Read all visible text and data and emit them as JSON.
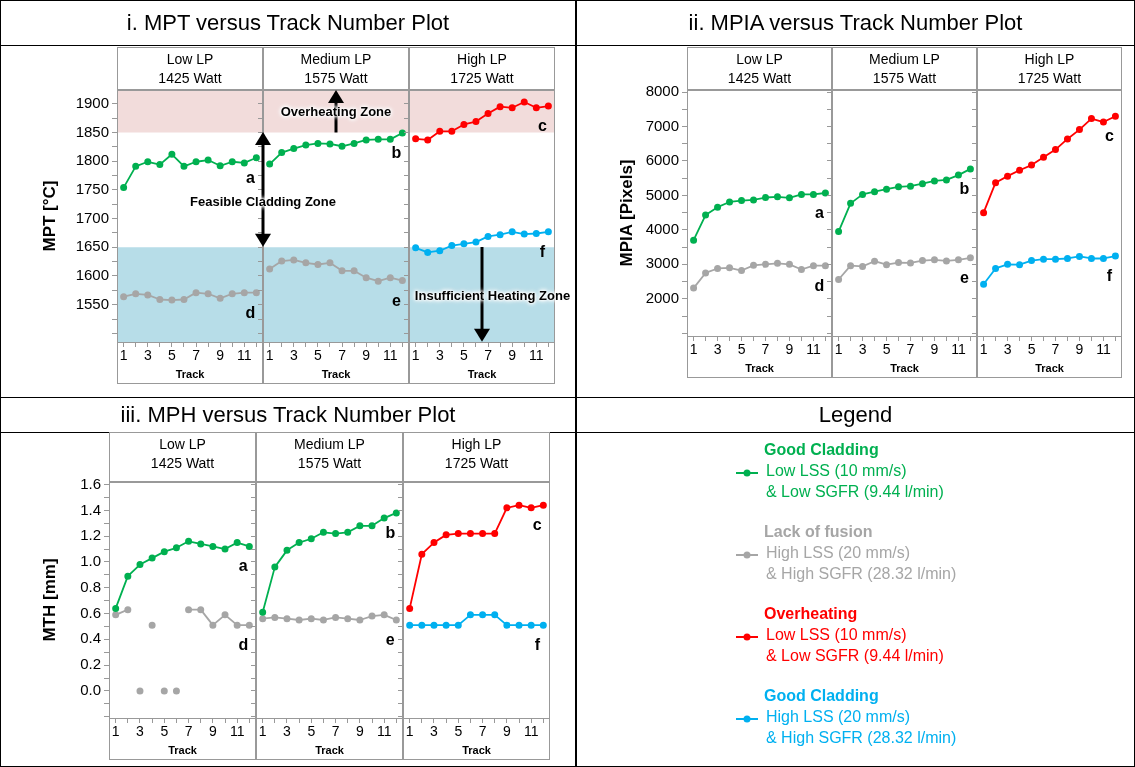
{
  "chart_data": [
    {
      "type": "line",
      "title": "Low LP",
      "subtitle": "1425 Watt",
      "xlabel": "Track",
      "ylabel": "MPT [°C]",
      "x": [
        1,
        2,
        3,
        4,
        5,
        6,
        7,
        8,
        9,
        10,
        11,
        12
      ],
      "xlim": [
        0.45,
        12.55
      ],
      "xticks": [
        1,
        {
          "value": 2,
          "label": null
        },
        3,
        {
          "value": 4,
          "label": null
        },
        5,
        {
          "value": 6,
          "label": null
        },
        7,
        {
          "value": 8,
          "label": null
        },
        9,
        {
          "value": 10,
          "label": null
        },
        11,
        {
          "value": 12,
          "label": null
        }
      ],
      "ylim": [
        1485,
        1924
      ],
      "yticks": [
        {
          "value": 1500,
          "label": null
        },
        {
          "value": 1525,
          "label": null
        },
        1550,
        {
          "value": 1575,
          "label": null
        },
        1600,
        {
          "value": 1625,
          "label": null
        },
        1650,
        {
          "value": 1675,
          "label": null
        },
        1700,
        {
          "value": 1725,
          "label": null
        },
        1750,
        {
          "value": 1775,
          "label": null
        },
        1800,
        {
          "value": 1825,
          "label": null
        },
        1850,
        {
          "value": 1875,
          "label": null
        },
        1900
      ],
      "marker": "circle",
      "bands": [
        {
          "axis": "y",
          "from": 1850,
          "to": 1924,
          "color": "#f2dcdb"
        },
        {
          "axis": "y",
          "from": 1485,
          "to": 1650,
          "color": "#b7dde8"
        }
      ],
      "annotations": [
        "i. MPT versus Track Number Plot",
        "Feasible Cladding Zone"
      ],
      "series": [
        {
          "name": "a",
          "color": "#00b050",
          "values": [
            1754,
            1791,
            1799,
            1794,
            1812,
            1791,
            1799,
            1802,
            1792,
            1799,
            1797,
            1806
          ]
        },
        {
          "name": "d",
          "color": "#a6a6a6",
          "values": [
            1564,
            1569,
            1567,
            1559,
            1558,
            1559,
            1571,
            1569,
            1561,
            1569,
            1571,
            1571
          ]
        }
      ]
    },
    {
      "type": "line",
      "title": "Medium LP",
      "subtitle": "1575 Watt",
      "xlabel": "Track",
      "x": [
        1,
        2,
        3,
        4,
        5,
        6,
        7,
        8,
        9,
        10,
        11,
        12
      ],
      "xlim": [
        0.45,
        12.55
      ],
      "xticks": [
        1,
        {
          "value": 2,
          "label": null
        },
        3,
        {
          "value": 4,
          "label": null
        },
        5,
        {
          "value": 6,
          "label": null
        },
        7,
        {
          "value": 8,
          "label": null
        },
        9,
        {
          "value": 10,
          "label": null
        },
        11,
        {
          "value": 12,
          "label": null
        }
      ],
      "ylim": [
        1485,
        1924
      ],
      "yticks": [
        {
          "value": 1500,
          "label": null
        },
        {
          "value": 1525,
          "label": null
        },
        1550,
        {
          "value": 1575,
          "label": null
        },
        1600,
        {
          "value": 1625,
          "label": null
        },
        1650,
        {
          "value": 1675,
          "label": null
        },
        1700,
        {
          "value": 1725,
          "label": null
        },
        1750,
        {
          "value": 1775,
          "label": null
        },
        1800,
        {
          "value": 1825,
          "label": null
        },
        1850,
        {
          "value": 1875,
          "label": null
        },
        1900
      ],
      "tick_labels": "x",
      "marker": "circle",
      "bands": [
        {
          "axis": "y",
          "from": 1850,
          "to": 1924,
          "label": "Overheating Zone",
          "color": "#f2dcdb"
        },
        {
          "axis": "y",
          "from": 1485,
          "to": 1650,
          "color": "#b7dde8"
        }
      ],
      "series": [
        {
          "name": "b",
          "color": "#00b050",
          "values": [
            1795,
            1815,
            1822,
            1828,
            1831,
            1830,
            1826,
            1831,
            1837,
            1838,
            1838,
            1849
          ]
        },
        {
          "name": "e",
          "color": "#a6a6a6",
          "values": [
            1612,
            1626,
            1628,
            1623,
            1620,
            1623,
            1609,
            1609,
            1597,
            1591,
            1597,
            1592
          ]
        }
      ]
    },
    {
      "type": "line",
      "title": "High LP",
      "subtitle": "1725 Watt",
      "xlabel": "Track",
      "x": [
        1,
        2,
        3,
        4,
        5,
        6,
        7,
        8,
        9,
        10,
        11,
        12
      ],
      "xlim": [
        0.45,
        12.55
      ],
      "xticks": [
        1,
        {
          "value": 2,
          "label": null
        },
        3,
        {
          "value": 4,
          "label": null
        },
        5,
        {
          "value": 6,
          "label": null
        },
        7,
        {
          "value": 8,
          "label": null
        },
        9,
        {
          "value": 10,
          "label": null
        },
        11,
        {
          "value": 12,
          "label": null
        }
      ],
      "ylim": [
        1485,
        1924
      ],
      "yticks": [
        {
          "value": 1500,
          "label": null
        },
        {
          "value": 1525,
          "label": null
        },
        1550,
        {
          "value": 1575,
          "label": null
        },
        1600,
        {
          "value": 1625,
          "label": null
        },
        1650,
        {
          "value": 1675,
          "label": null
        },
        1700,
        {
          "value": 1725,
          "label": null
        },
        1750,
        {
          "value": 1775,
          "label": null
        },
        1800,
        {
          "value": 1825,
          "label": null
        },
        1850,
        {
          "value": 1875,
          "label": null
        },
        1900
      ],
      "tick_labels": "x",
      "marker": "circle",
      "bands": [
        {
          "axis": "y",
          "from": 1850,
          "to": 1924,
          "color": "#f2dcdb"
        },
        {
          "axis": "y",
          "from": 1485,
          "to": 1650,
          "label": "Insufficient Heating Zone",
          "color": "#b7dde8"
        }
      ],
      "series": [
        {
          "name": "c",
          "color": "#ff0000",
          "values": [
            1839,
            1837,
            1852,
            1852,
            1864,
            1869,
            1883,
            1895,
            1893,
            1903,
            1893,
            1896
          ]
        },
        {
          "name": "f",
          "color": "#00b0f0",
          "values": [
            1649,
            1641,
            1644,
            1653,
            1656,
            1659,
            1669,
            1672,
            1677,
            1673,
            1674,
            1677
          ]
        }
      ]
    },
    {
      "type": "line",
      "title": "Low LP",
      "subtitle": "1425 Watt",
      "xlabel": "Track",
      "ylabel": "MPIA [Pixels]",
      "x": [
        1,
        2,
        3,
        4,
        5,
        6,
        7,
        8,
        9,
        10,
        11,
        12
      ],
      "xlim": [
        0.45,
        12.55
      ],
      "xticks": [
        1,
        {
          "value": 2,
          "label": null
        },
        3,
        {
          "value": 4,
          "label": null
        },
        5,
        {
          "value": 6,
          "label": null
        },
        7,
        {
          "value": 8,
          "label": null
        },
        9,
        {
          "value": 10,
          "label": null
        },
        11,
        {
          "value": 12,
          "label": null
        }
      ],
      "ylim": [
        920,
        8060
      ],
      "yticks": [
        {
          "value": 1000,
          "label": null
        },
        {
          "value": 1500,
          "label": null
        },
        2000,
        {
          "value": 2500,
          "label": null
        },
        3000,
        {
          "value": 3500,
          "label": null
        },
        4000,
        {
          "value": 4500,
          "label": null
        },
        5000,
        {
          "value": 5500,
          "label": null
        },
        6000,
        {
          "value": 6500,
          "label": null
        },
        7000,
        {
          "value": 7500,
          "label": null
        },
        8000
      ],
      "marker": "circle",
      "annotations": [
        "ii. MPIA versus Track Number Plot"
      ],
      "series": [
        {
          "name": "a",
          "color": "#00b050",
          "values": [
            3700,
            4430,
            4660,
            4810,
            4850,
            4870,
            4940,
            4960,
            4930,
            5030,
            5030,
            5070
          ]
        },
        {
          "name": "d",
          "color": "#a6a6a6",
          "values": [
            2310,
            2750,
            2880,
            2900,
            2820,
            2970,
            3000,
            3030,
            3000,
            2850,
            2960,
            2960
          ]
        }
      ]
    },
    {
      "type": "line",
      "title": "Medium LP",
      "subtitle": "1575 Watt",
      "xlabel": "Track",
      "x": [
        1,
        2,
        3,
        4,
        5,
        6,
        7,
        8,
        9,
        10,
        11,
        12
      ],
      "xlim": [
        0.45,
        12.55
      ],
      "xticks": [
        1,
        {
          "value": 2,
          "label": null
        },
        3,
        {
          "value": 4,
          "label": null
        },
        5,
        {
          "value": 6,
          "label": null
        },
        7,
        {
          "value": 8,
          "label": null
        },
        9,
        {
          "value": 10,
          "label": null
        },
        11,
        {
          "value": 12,
          "label": null
        }
      ],
      "ylim": [
        920,
        8060
      ],
      "yticks": [
        {
          "value": 1000,
          "label": null
        },
        {
          "value": 1500,
          "label": null
        },
        2000,
        {
          "value": 2500,
          "label": null
        },
        3000,
        {
          "value": 3500,
          "label": null
        },
        4000,
        {
          "value": 4500,
          "label": null
        },
        5000,
        {
          "value": 5500,
          "label": null
        },
        6000,
        {
          "value": 6500,
          "label": null
        },
        7000,
        {
          "value": 7500,
          "label": null
        },
        8000
      ],
      "tick_labels": "x",
      "marker": "circle",
      "series": [
        {
          "name": "b",
          "color": "#00b050",
          "values": [
            3950,
            4770,
            5030,
            5110,
            5180,
            5250,
            5270,
            5340,
            5420,
            5450,
            5590,
            5770
          ]
        },
        {
          "name": "e",
          "color": "#a6a6a6",
          "values": [
            2560,
            2960,
            2940,
            3090,
            2990,
            3050,
            3040,
            3110,
            3130,
            3100,
            3130,
            3190
          ]
        }
      ]
    },
    {
      "type": "line",
      "title": "High LP",
      "subtitle": "1725 Watt",
      "xlabel": "Track",
      "x": [
        1,
        2,
        3,
        4,
        5,
        6,
        7,
        8,
        9,
        10,
        11,
        12
      ],
      "xlim": [
        0.45,
        12.55
      ],
      "xticks": [
        1,
        {
          "value": 2,
          "label": null
        },
        3,
        {
          "value": 4,
          "label": null
        },
        5,
        {
          "value": 6,
          "label": null
        },
        7,
        {
          "value": 8,
          "label": null
        },
        9,
        {
          "value": 10,
          "label": null
        },
        11,
        {
          "value": 12,
          "label": null
        }
      ],
      "ylim": [
        920,
        8060
      ],
      "yticks": [
        {
          "value": 1000,
          "label": null
        },
        {
          "value": 1500,
          "label": null
        },
        2000,
        {
          "value": 2500,
          "label": null
        },
        3000,
        {
          "value": 3500,
          "label": null
        },
        4000,
        {
          "value": 4500,
          "label": null
        },
        5000,
        {
          "value": 5500,
          "label": null
        },
        6000,
        {
          "value": 6500,
          "label": null
        },
        7000,
        {
          "value": 7500,
          "label": null
        },
        8000
      ],
      "tick_labels": "x",
      "marker": "circle",
      "series": [
        {
          "name": "c",
          "color": "#ff0000",
          "values": [
            4500,
            5370,
            5560,
            5730,
            5880,
            6110,
            6330,
            6640,
            6910,
            7230,
            7130,
            7300
          ]
        },
        {
          "name": "f",
          "color": "#00b0f0",
          "values": [
            2420,
            2880,
            3000,
            2990,
            3110,
            3150,
            3150,
            3170,
            3230,
            3170,
            3170,
            3240
          ]
        }
      ]
    },
    {
      "type": "line",
      "title": "Low LP",
      "subtitle": "1425 Watt",
      "xlabel": "Track",
      "ylabel": "MTH [mm]",
      "x": [
        1,
        2,
        3,
        4,
        5,
        6,
        7,
        8,
        9,
        10,
        11,
        12
      ],
      "xlim": [
        0.45,
        12.55
      ],
      "xticks": [
        1,
        {
          "value": 2,
          "label": null
        },
        3,
        {
          "value": 4,
          "label": null
        },
        5,
        {
          "value": 6,
          "label": null
        },
        7,
        {
          "value": 8,
          "label": null
        },
        9,
        {
          "value": 10,
          "label": null
        },
        11,
        {
          "value": 12,
          "label": null
        }
      ],
      "ylim": [
        -0.21,
        1.62
      ],
      "yticks": [
        {
          "value": -0.2,
          "label": null
        },
        {
          "value": -0.1,
          "label": null
        },
        {
          "value": 0,
          "label": "0.0"
        },
        {
          "value": 0.1,
          "label": null
        },
        {
          "value": 0.2,
          "label": "0.2"
        },
        {
          "value": 0.3,
          "label": null
        },
        {
          "value": 0.4,
          "label": "0.4"
        },
        {
          "value": 0.5,
          "label": null
        },
        {
          "value": 0.6,
          "label": "0.6"
        },
        {
          "value": 0.7,
          "label": null
        },
        {
          "value": 0.8,
          "label": "0.8"
        },
        {
          "value": 0.9,
          "label": null
        },
        {
          "value": 1.0,
          "label": "1.0"
        },
        {
          "value": 1.1,
          "label": null
        },
        {
          "value": 1.2,
          "label": "1.2"
        },
        {
          "value": 1.3,
          "label": null
        },
        {
          "value": 1.4,
          "label": "1.4"
        },
        {
          "value": 1.5,
          "label": null
        },
        {
          "value": 1.6,
          "label": "1.6"
        }
      ],
      "marker": "circle",
      "annotations": [
        "iii. MPH versus Track Number Plot"
      ],
      "series": [
        {
          "name": "a",
          "color": "#00b050",
          "values": [
            0.64,
            0.89,
            0.98,
            1.03,
            1.08,
            1.11,
            1.16,
            1.14,
            1.12,
            1.1,
            1.15,
            1.12
          ]
        },
        {
          "name": "d",
          "color": "#a6a6a6",
          "values": [
            0.59,
            0.63,
            null,
            null,
            null,
            null,
            0.63,
            0.63,
            0.51,
            0.59,
            0.51,
            0.51
          ]
        },
        {
          "type": "scatter",
          "color": "#a6a6a6",
          "x": [
            3,
            4,
            5,
            6
          ],
          "values": [
            0.0,
            0.51,
            0.0,
            0.0
          ]
        }
      ]
    },
    {
      "type": "line",
      "title": "Medium LP",
      "subtitle": "1575 Watt",
      "xlabel": "Track",
      "x": [
        1,
        2,
        3,
        4,
        5,
        6,
        7,
        8,
        9,
        10,
        11,
        12
      ],
      "xlim": [
        0.45,
        12.55
      ],
      "xticks": [
        1,
        {
          "value": 2,
          "label": null
        },
        3,
        {
          "value": 4,
          "label": null
        },
        5,
        {
          "value": 6,
          "label": null
        },
        7,
        {
          "value": 8,
          "label": null
        },
        9,
        {
          "value": 10,
          "label": null
        },
        11,
        {
          "value": 12,
          "label": null
        }
      ],
      "ylim": [
        -0.21,
        1.62
      ],
      "yticks": [
        -0.2,
        -0.1,
        0,
        0.1,
        0.2,
        0.3,
        0.4,
        0.5,
        0.6,
        0.7,
        0.8,
        0.9,
        1,
        1.1,
        1.2,
        1.3,
        1.4,
        1.5,
        1.6
      ],
      "tick_labels": "x",
      "marker": "circle",
      "series": [
        {
          "name": "b",
          "color": "#00b050",
          "values": [
            0.61,
            0.96,
            1.09,
            1.15,
            1.18,
            1.23,
            1.22,
            1.23,
            1.28,
            1.28,
            1.34,
            1.38
          ]
        },
        {
          "name": "e",
          "color": "#a6a6a6",
          "values": [
            0.56,
            0.57,
            0.56,
            0.55,
            0.56,
            0.55,
            0.57,
            0.56,
            0.55,
            0.58,
            0.59,
            0.55
          ]
        }
      ]
    },
    {
      "type": "line",
      "title": "High LP",
      "subtitle": "1725 Watt",
      "xlabel": "Track",
      "x": [
        1,
        2,
        3,
        4,
        5,
        6,
        7,
        8,
        9,
        10,
        11,
        12
      ],
      "xlim": [
        0.45,
        12.55
      ],
      "xticks": [
        1,
        {
          "value": 2,
          "label": null
        },
        3,
        {
          "value": 4,
          "label": null
        },
        5,
        {
          "value": 6,
          "label": null
        },
        7,
        {
          "value": 8,
          "label": null
        },
        9,
        {
          "value": 10,
          "label": null
        },
        11,
        {
          "value": 12,
          "label": null
        }
      ],
      "ylim": [
        -0.21,
        1.62
      ],
      "yticks": [
        -0.2,
        -0.1,
        0,
        0.1,
        0.2,
        0.3,
        0.4,
        0.5,
        0.6,
        0.7,
        0.8,
        0.9,
        1,
        1.1,
        1.2,
        1.3,
        1.4,
        1.5,
        1.6
      ],
      "tick_labels": "x",
      "marker": "circle",
      "series": [
        {
          "name": "c",
          "color": "#ff0000",
          "values": [
            0.64,
            1.06,
            1.15,
            1.21,
            1.22,
            1.22,
            1.22,
            1.22,
            1.42,
            1.44,
            1.42,
            1.44
          ]
        },
        {
          "name": "f",
          "color": "#00b0f0",
          "values": [
            0.51,
            0.51,
            0.51,
            0.51,
            0.51,
            0.59,
            0.59,
            0.59,
            0.51,
            0.51,
            0.51,
            0.51
          ]
        }
      ]
    },
    {
      "type": "other",
      "title": "Legend",
      "series": [
        {
          "name": "Good Cladding\nLow LSS (10 mm/s)\n& Low SGFR (9.44 l/min)",
          "color": "#00b050"
        },
        {
          "name": "Lack of fusion\nHigh LSS (20 mm/s)\n& High SGFR (28.32 l/min)",
          "color": "#a6a6a6"
        },
        {
          "name": "Overheating\nLow LSS (10 mm/s)\n& Low SGFR (9.44 l/min)",
          "color": "#ff0000"
        },
        {
          "name": "Good Cladding\nHigh LSS (20 mm/s)\n& High SGFR (28.32 l/min)",
          "color": "#00b0f0"
        }
      ]
    }
  ]
}
